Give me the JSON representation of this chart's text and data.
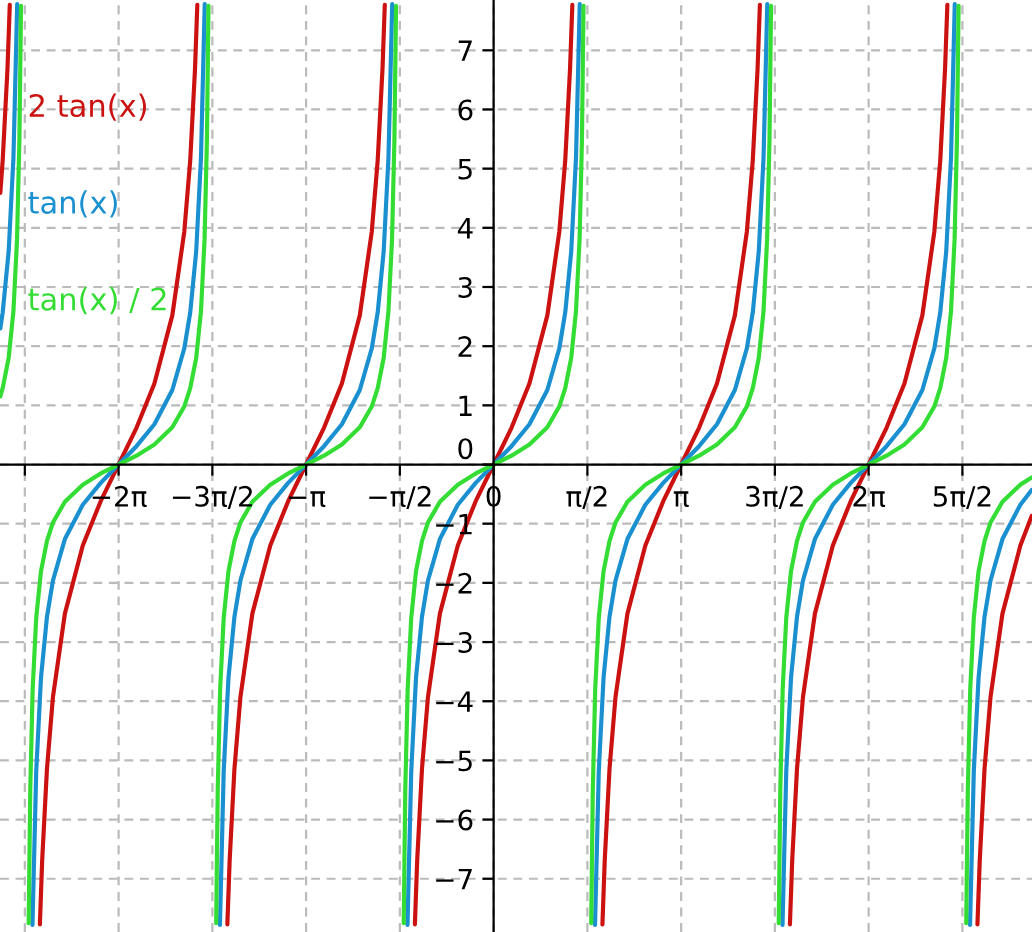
{
  "chart_data": {
    "type": "line",
    "xlim": [
      -8.27,
      9.02
    ],
    "ylim": [
      -7.9,
      7.85
    ],
    "xticks": [
      {
        "value": -7.854,
        "label": null
      },
      {
        "value": -6.283,
        "label": "−2π"
      },
      {
        "value": -4.712,
        "label": "−3π/2"
      },
      {
        "value": -3.142,
        "label": "−π"
      },
      {
        "value": -1.571,
        "label": "−π/2"
      },
      0,
      {
        "value": 1.571,
        "label": "π/2"
      },
      {
        "value": 3.142,
        "label": "π"
      },
      {
        "value": 4.712,
        "label": "3π/2"
      },
      {
        "value": 6.283,
        "label": "2π"
      },
      {
        "value": 7.854,
        "label": "5π/2"
      }
    ],
    "yticks": [
      {
        "value": -7,
        "label": "−7"
      },
      {
        "value": -6,
        "label": "−6"
      },
      {
        "value": -5,
        "label": "−5"
      },
      {
        "value": -4,
        "label": "−4"
      },
      {
        "value": -3,
        "label": "−3"
      },
      {
        "value": -2,
        "label": "−2"
      },
      {
        "value": -1,
        "label": "−1"
      },
      0,
      1,
      2,
      3,
      4,
      5,
      6,
      7
    ],
    "grid": true,
    "legend": "left",
    "marker": "none",
    "line_style": "solid",
    "series": [
      {
        "name": "2 tan(x)",
        "color": "#cc1111",
        "x": [
          -8.265,
          -8.225,
          -8.145,
          -8.106,
          -7.854,
          -7.602,
          -7.563,
          -7.483,
          -7.383,
          -7.183,
          -6.883,
          -6.583,
          -6.283,
          -5.983,
          -5.683,
          -5.383,
          -5.183,
          -5.083,
          -5.003,
          -4.964,
          -4.712,
          -4.461,
          -4.422,
          -4.342,
          -4.242,
          -4.042,
          -3.742,
          -3.442,
          -3.142,
          -2.842,
          -2.542,
          -2.242,
          -2.042,
          -1.942,
          -1.862,
          -1.823,
          -1.571,
          -1.319,
          -1.28,
          -1.2,
          -1.1,
          -0.9,
          -0.6,
          -0.3,
          0,
          0.3,
          0.6,
          0.9,
          1.1,
          1.2,
          1.28,
          1.319,
          1.571,
          1.823,
          1.862,
          1.942,
          2.042,
          2.242,
          2.542,
          2.842,
          3.142,
          3.442,
          3.742,
          4.042,
          4.242,
          4.342,
          4.422,
          4.461,
          4.712,
          4.964,
          5.003,
          5.083,
          5.183,
          5.383,
          5.683,
          5.983,
          6.283,
          6.583,
          6.883,
          7.183,
          7.383,
          7.483,
          7.563,
          7.602,
          7.854,
          8.106,
          8.145,
          8.225,
          8.325,
          8.525,
          8.825,
          9.015
        ],
        "values": [
          4.59,
          5.14,
          6.68,
          7.77,
          null,
          -7.77,
          -6.68,
          -5.14,
          -3.93,
          -2.52,
          -1.37,
          -0.62,
          0,
          0.62,
          1.37,
          2.52,
          3.93,
          5.14,
          6.68,
          7.77,
          null,
          -7.77,
          -6.68,
          -5.14,
          -3.93,
          -2.52,
          -1.37,
          -0.62,
          0,
          0.62,
          1.37,
          2.52,
          3.93,
          5.14,
          6.68,
          7.77,
          null,
          -7.77,
          -6.68,
          -5.14,
          -3.93,
          -2.52,
          -1.37,
          -0.62,
          0,
          0.62,
          1.37,
          2.52,
          3.93,
          5.14,
          6.68,
          7.77,
          null,
          -7.77,
          -6.68,
          -5.14,
          -3.93,
          -2.52,
          -1.37,
          -0.62,
          0,
          0.62,
          1.37,
          2.52,
          3.93,
          5.14,
          6.68,
          7.77,
          null,
          -7.77,
          -6.68,
          -5.14,
          -3.93,
          -2.52,
          -1.37,
          -0.62,
          0,
          0.62,
          1.37,
          2.52,
          3.93,
          5.14,
          6.68,
          7.77,
          null,
          -7.77,
          -6.68,
          -5.14,
          -3.93,
          -2.52,
          -1.37,
          -0.87
        ]
      },
      {
        "name": "tan(x)",
        "color": "#1a90d0",
        "x": [
          -8.265,
          -8.225,
          -8.125,
          -8.045,
          -7.982,
          -7.854,
          -7.726,
          -7.663,
          -7.583,
          -7.483,
          -7.383,
          -7.183,
          -6.883,
          -6.583,
          -6.283,
          -5.983,
          -5.683,
          -5.383,
          -5.183,
          -5.083,
          -4.983,
          -4.903,
          -4.84,
          -4.712,
          -4.585,
          -4.522,
          -4.442,
          -4.342,
          -4.242,
          -4.042,
          -3.742,
          -3.442,
          -3.142,
          -2.842,
          -2.542,
          -2.242,
          -2.042,
          -1.942,
          -1.842,
          -1.762,
          -1.699,
          -1.571,
          -1.443,
          -1.38,
          -1.3,
          -1.2,
          -1.1,
          -0.9,
          -0.6,
          -0.3,
          0,
          0.3,
          0.6,
          0.9,
          1.1,
          1.2,
          1.3,
          1.38,
          1.443,
          1.571,
          1.699,
          1.762,
          1.842,
          1.942,
          2.042,
          2.242,
          2.542,
          2.842,
          3.142,
          3.442,
          3.742,
          4.042,
          4.242,
          4.342,
          4.442,
          4.522,
          4.585,
          4.712,
          4.84,
          4.903,
          4.983,
          5.083,
          5.183,
          5.383,
          5.683,
          5.983,
          6.283,
          6.583,
          6.883,
          7.183,
          7.383,
          7.483,
          7.583,
          7.663,
          7.726,
          7.854,
          7.982,
          8.045,
          8.125,
          8.225,
          8.325,
          8.525,
          8.825,
          9.015
        ],
        "values": [
          2.3,
          2.57,
          3.6,
          5.18,
          7.78,
          null,
          -7.78,
          -5.18,
          -3.6,
          -2.57,
          -1.96,
          -1.26,
          -0.68,
          -0.31,
          0,
          0.31,
          0.68,
          1.26,
          1.96,
          2.57,
          3.6,
          5.18,
          7.78,
          null,
          -7.78,
          -5.18,
          -3.6,
          -2.57,
          -1.96,
          -1.26,
          -0.68,
          -0.31,
          0,
          0.31,
          0.68,
          1.26,
          1.96,
          2.57,
          3.6,
          5.18,
          7.78,
          null,
          -7.78,
          -5.18,
          -3.6,
          -2.57,
          -1.96,
          -1.26,
          -0.68,
          -0.31,
          0,
          0.31,
          0.68,
          1.26,
          1.96,
          2.57,
          3.6,
          5.18,
          7.78,
          null,
          -7.78,
          -5.18,
          -3.6,
          -2.57,
          -1.96,
          -1.26,
          -0.68,
          -0.31,
          0,
          0.31,
          0.68,
          1.26,
          1.96,
          2.57,
          3.6,
          5.18,
          7.78,
          null,
          -7.78,
          -5.18,
          -3.6,
          -2.57,
          -1.96,
          -1.26,
          -0.68,
          -0.31,
          0,
          0.31,
          0.68,
          1.26,
          1.96,
          2.57,
          3.6,
          5.18,
          7.78,
          null,
          -7.78,
          -5.18,
          -3.6,
          -2.57,
          -1.96,
          -1.26,
          -0.68,
          -0.43
        ]
      },
      {
        "name": "tan(x) / 2",
        "color": "#33dd33",
        "x": [
          -8.265,
          -8.225,
          -8.125,
          -8.045,
          -7.985,
          -7.945,
          -7.918,
          -7.854,
          -7.79,
          -7.763,
          -7.723,
          -7.663,
          -7.583,
          -7.483,
          -7.383,
          -7.183,
          -6.883,
          -6.583,
          -6.283,
          -5.983,
          -5.683,
          -5.383,
          -5.183,
          -5.083,
          -4.983,
          -4.903,
          -4.843,
          -4.803,
          -4.777,
          -4.712,
          -4.648,
          -4.622,
          -4.582,
          -4.522,
          -4.442,
          -4.342,
          -4.242,
          -4.042,
          -3.742,
          -3.442,
          -3.142,
          -2.842,
          -2.542,
          -2.242,
          -2.042,
          -1.942,
          -1.842,
          -1.762,
          -1.702,
          -1.662,
          -1.635,
          -1.571,
          -1.506,
          -1.48,
          -1.44,
          -1.38,
          -1.3,
          -1.2,
          -1.1,
          -0.9,
          -0.6,
          -0.3,
          0,
          0.3,
          0.6,
          0.9,
          1.1,
          1.2,
          1.3,
          1.38,
          1.44,
          1.48,
          1.506,
          1.571,
          1.635,
          1.662,
          1.702,
          1.762,
          1.842,
          1.942,
          2.042,
          2.242,
          2.542,
          2.842,
          3.142,
          3.442,
          3.742,
          4.042,
          4.242,
          4.342,
          4.442,
          4.522,
          4.582,
          4.622,
          4.648,
          4.712,
          4.777,
          4.803,
          4.843,
          4.903,
          4.983,
          5.083,
          5.183,
          5.383,
          5.683,
          5.983,
          6.283,
          6.583,
          6.883,
          7.183,
          7.383,
          7.483,
          7.583,
          7.663,
          7.723,
          7.763,
          7.79,
          7.854,
          7.918,
          7.945,
          7.985,
          8.045,
          8.125,
          8.225,
          8.325,
          8.525,
          8.825,
          9.015
        ],
        "values": [
          1.15,
          1.29,
          1.8,
          2.59,
          3.8,
          5.49,
          7.75,
          null,
          -7.75,
          -5.49,
          -3.8,
          -2.59,
          -1.8,
          -1.29,
          -0.98,
          -0.63,
          -0.34,
          -0.15,
          0,
          0.15,
          0.34,
          0.63,
          0.98,
          1.29,
          1.8,
          2.59,
          3.8,
          5.49,
          7.75,
          null,
          -7.75,
          -5.49,
          -3.8,
          -2.59,
          -1.8,
          -1.29,
          -0.98,
          -0.63,
          -0.34,
          -0.15,
          0,
          0.15,
          0.34,
          0.63,
          0.98,
          1.29,
          1.8,
          2.59,
          3.8,
          5.49,
          7.75,
          null,
          -7.75,
          -5.49,
          -3.8,
          -2.59,
          -1.8,
          -1.29,
          -0.98,
          -0.63,
          -0.34,
          -0.15,
          0,
          0.15,
          0.34,
          0.63,
          0.98,
          1.29,
          1.8,
          2.59,
          3.8,
          5.49,
          7.75,
          null,
          -7.75,
          -5.49,
          -3.8,
          -2.59,
          -1.8,
          -1.29,
          -0.98,
          -0.63,
          -0.34,
          -0.15,
          0,
          0.15,
          0.34,
          0.63,
          0.98,
          1.29,
          1.8,
          2.59,
          3.8,
          5.49,
          7.75,
          null,
          -7.75,
          -5.49,
          -3.8,
          -2.59,
          -1.8,
          -1.29,
          -0.98,
          -0.63,
          -0.34,
          -0.15,
          0,
          0.15,
          0.34,
          0.63,
          0.98,
          1.29,
          1.8,
          2.59,
          3.8,
          5.49,
          7.75,
          null,
          -7.75,
          -5.49,
          -3.8,
          -2.59,
          -1.8,
          -1.29,
          -0.98,
          -0.63,
          -0.34,
          -0.22
        ]
      }
    ]
  }
}
